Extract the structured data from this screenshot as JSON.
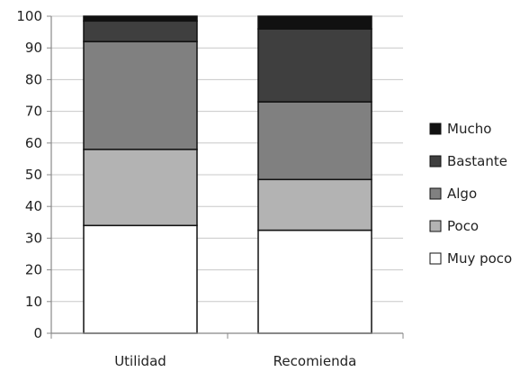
{
  "chart_data": {
    "type": "bar",
    "stacked": true,
    "categories": [
      "Utilidad",
      "Recomienda"
    ],
    "ylim": [
      0,
      100
    ],
    "yticks": [
      0,
      10,
      20,
      30,
      40,
      50,
      60,
      70,
      80,
      90,
      100
    ],
    "grid": true,
    "legend_position": "right",
    "series": [
      {
        "name": "Muy poco",
        "color": "#ffffff",
        "values": [
          34,
          32.5
        ]
      },
      {
        "name": "Poco",
        "color": "#b3b3b3",
        "values": [
          24,
          16
        ]
      },
      {
        "name": "Algo",
        "color": "#808080",
        "values": [
          34,
          24.5
        ]
      },
      {
        "name": "Bastante",
        "color": "#3f3f3f",
        "values": [
          6.5,
          23
        ]
      },
      {
        "name": "Mucho",
        "color": "#111111",
        "values": [
          1.5,
          4
        ]
      }
    ]
  }
}
